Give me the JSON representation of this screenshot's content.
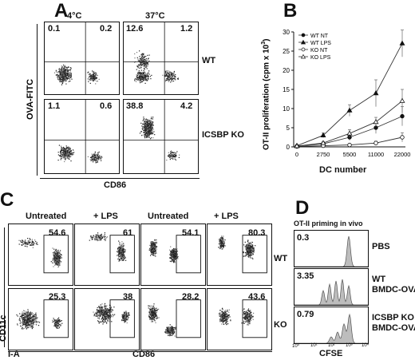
{
  "panels": {
    "A": {
      "label": "A",
      "col_headers": [
        "4°C",
        "37°C"
      ],
      "row_labels": [
        "WT",
        "ICSBP KO"
      ],
      "y_axis": "OVA-FITC",
      "x_axis": "CD86",
      "quadrants": [
        [
          [
            "0.1",
            "0.2"
          ],
          [
            "12.6",
            "1.2"
          ]
        ],
        [
          [
            "1.1",
            "0.6"
          ],
          [
            "38.8",
            "4.2"
          ]
        ]
      ]
    },
    "B": {
      "label": "B",
      "xlabel": "DC number",
      "ylabel": "OT-II proliferation (cpm x 10",
      "ylabel_sup": "3",
      "ylabel_end": ")"
    },
    "C": {
      "label": "C",
      "col_headers": [
        "Untreated",
        "+ LPS",
        "Untreated",
        "+ LPS"
      ],
      "row_labels": [
        "WT",
        "KO"
      ],
      "y_axis": "CD11c",
      "x_axis_left": "I-A",
      "x_axis_right": "CD86",
      "values": [
        [
          "54.6",
          "61",
          "54.1",
          "80.3"
        ],
        [
          "25.3",
          "38",
          "28.2",
          "43.6"
        ]
      ]
    },
    "D": {
      "label": "D",
      "title": "OT-II priming in vivo",
      "rows": [
        {
          "value": "0.3",
          "name": "PBS"
        },
        {
          "value": "3.35",
          "name": "WT\nBMDC-OVA"
        },
        {
          "value": "0.79",
          "name": "ICSBP KO\nBMDC-OVA"
        }
      ],
      "x_axis": "CFSE",
      "ticks": [
        "10⁰",
        "10¹",
        "10²",
        "10³",
        "10⁴"
      ]
    }
  },
  "chart_data": {
    "type": "line",
    "title": "",
    "xlabel": "DC number",
    "ylabel": "OT-II proliferation (cpm x 10³)",
    "categories": [
      "0",
      "2750",
      "5500",
      "11000",
      "22000"
    ],
    "ylim": [
      0,
      30
    ],
    "yticks": [
      0,
      5,
      10,
      15,
      20,
      25,
      30
    ],
    "legend_position": "top-left",
    "series": [
      {
        "name": "WT NT",
        "marker": "filled-circle",
        "values": [
          0.2,
          0.8,
          2.5,
          5.0,
          8.0
        ],
        "errors": [
          0.2,
          0.4,
          0.8,
          1.5,
          2.5
        ]
      },
      {
        "name": "WT LPS",
        "marker": "filled-triangle",
        "values": [
          0.3,
          3.0,
          9.5,
          14.0,
          27.0
        ],
        "errors": [
          0.2,
          0.6,
          1.5,
          3.5,
          3.5
        ]
      },
      {
        "name": "KO NT",
        "marker": "open-circle",
        "values": [
          0.1,
          0.3,
          0.5,
          1.0,
          2.5
        ],
        "errors": [
          0.1,
          0.2,
          0.3,
          0.5,
          1.2
        ]
      },
      {
        "name": "KO LPS",
        "marker": "open-triangle",
        "values": [
          0.2,
          1.0,
          3.5,
          6.5,
          12.0
        ],
        "errors": [
          0.1,
          0.4,
          1.0,
          1.2,
          3.0
        ]
      }
    ]
  }
}
